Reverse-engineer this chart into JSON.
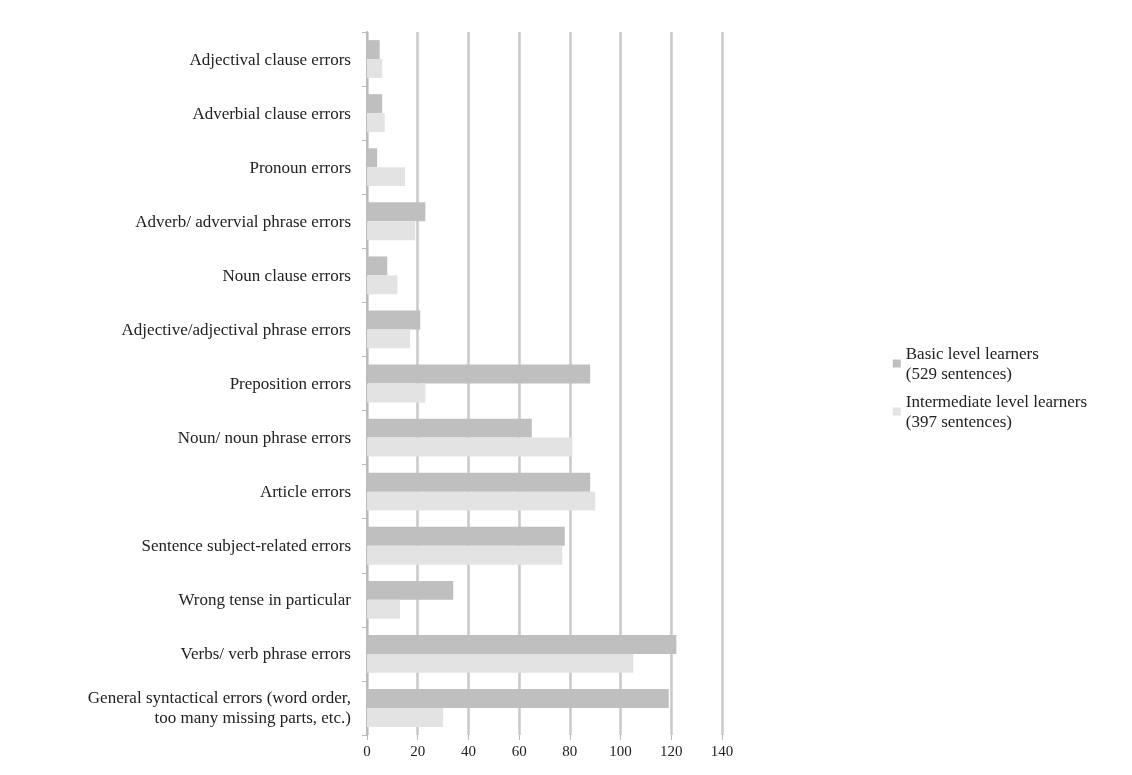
{
  "chart_data": {
    "type": "bar",
    "orientation": "horizontal",
    "categories": [
      "Adjectival clause errors",
      "Adverbial clause errors",
      "Pronoun errors",
      "Adverb/ advervial phrase errors",
      "Noun clause errors",
      "Adjective/adjectival phrase errors",
      "Preposition errors",
      "Noun/ noun phrase errors",
      "Article errors",
      "Sentence subject-related errors",
      "Wrong tense in particular",
      "Verbs/ verb phrase errors",
      "General syntactical errors (word order,\ntoo many missing parts, etc.)"
    ],
    "series": [
      {
        "name": "Basic level learners\n(529 sentences)",
        "color": "#bfbfbf",
        "values": [
          5,
          6,
          4,
          23,
          8,
          21,
          88,
          65,
          88,
          78,
          34,
          122,
          119
        ]
      },
      {
        "name": "Intermediate level learners\n(397 sentences)",
        "color": "#e3e3e3",
        "values": [
          6,
          7,
          15,
          19,
          12,
          17,
          23,
          81,
          90,
          77,
          13,
          105,
          30
        ]
      }
    ],
    "xlim": [
      0,
      140
    ],
    "xticks": [
      0,
      20,
      40,
      60,
      80,
      100,
      120,
      140
    ],
    "grid": "x",
    "legend": "right"
  }
}
